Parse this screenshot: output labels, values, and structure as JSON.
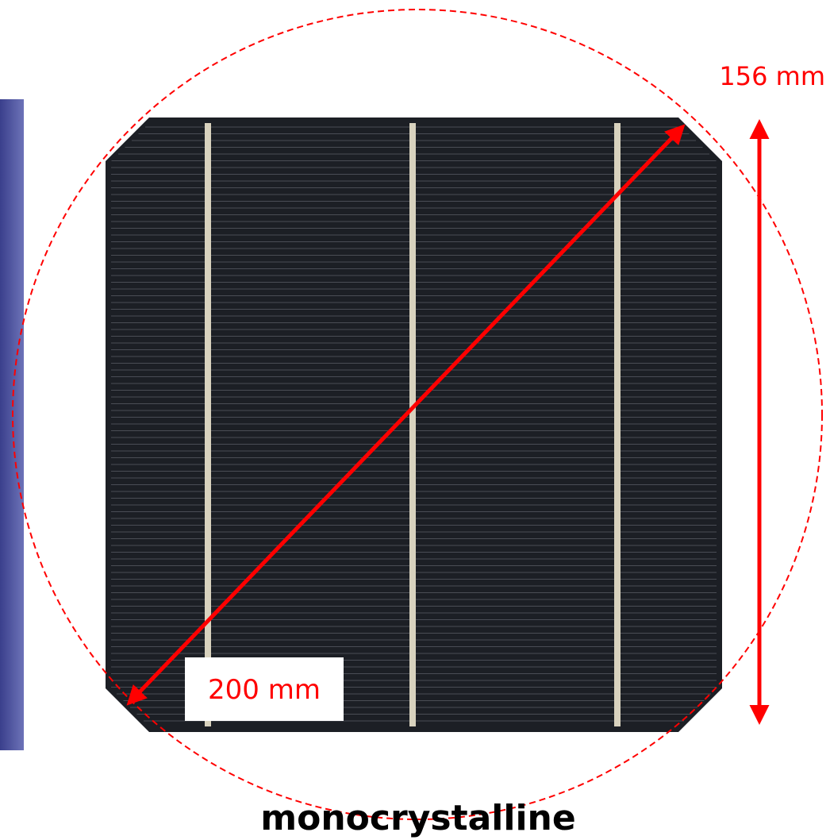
{
  "labels": {
    "height": "156 mm",
    "diagonal": "200 mm"
  },
  "caption": "monocrystalline"
}
